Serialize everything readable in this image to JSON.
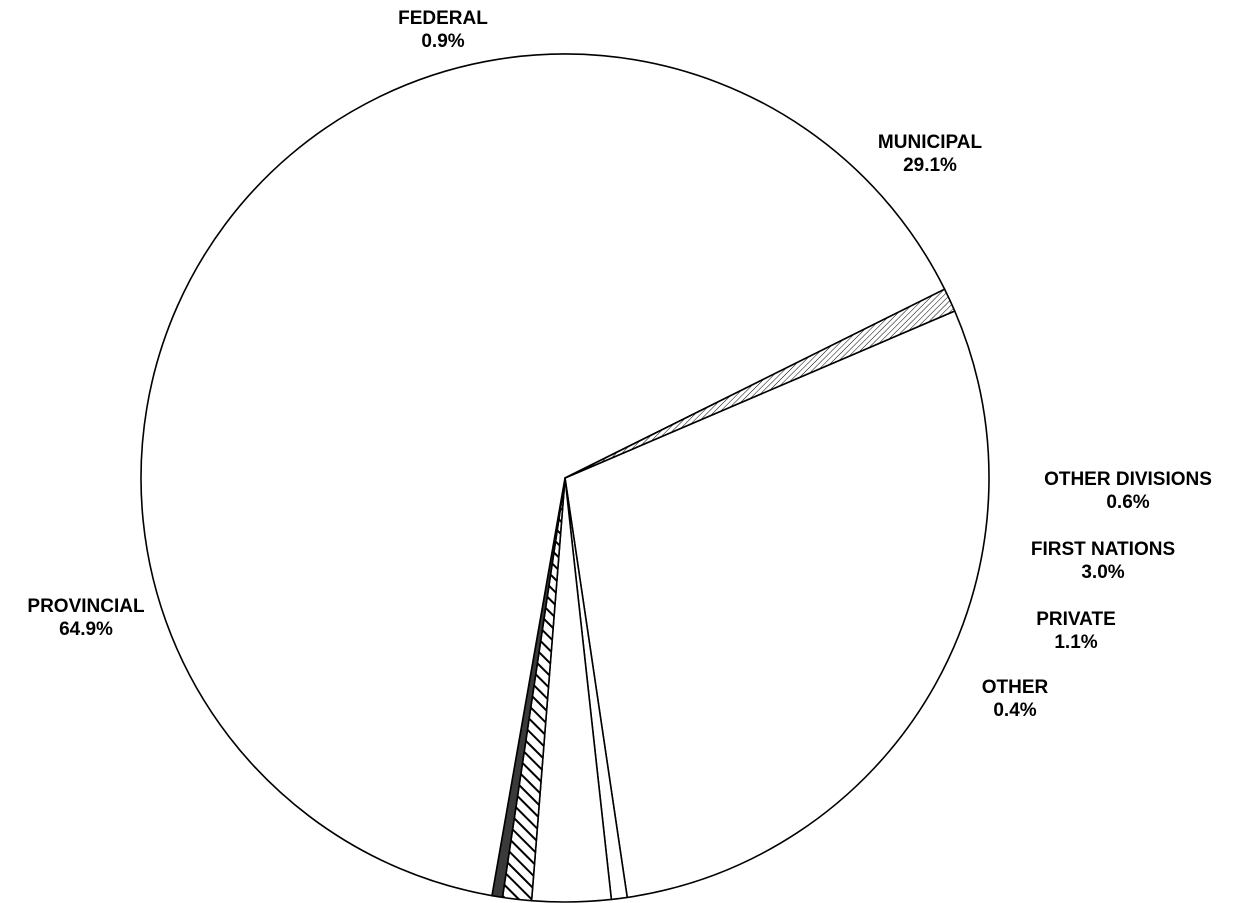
{
  "chart_data": {
    "type": "pie",
    "title": "",
    "slices": [
      {
        "name": "MUNICIPAL",
        "value": 29.1,
        "label": "29.1%",
        "pattern": "none"
      },
      {
        "name": "OTHER DIVISIONS",
        "value": 0.6,
        "label": "0.6%",
        "pattern": "none"
      },
      {
        "name": "FIRST NATIONS",
        "value": 3.0,
        "label": "3.0%",
        "pattern": "none"
      },
      {
        "name": "PRIVATE",
        "value": 1.1,
        "label": "1.1%",
        "pattern": "wide-diagonal-hatch"
      },
      {
        "name": "OTHER",
        "value": 0.4,
        "label": "0.4%",
        "pattern": "solid-dark"
      },
      {
        "name": "PROVINCIAL",
        "value": 64.9,
        "label": "64.9%",
        "pattern": "none"
      },
      {
        "name": "FEDERAL",
        "value": 0.9,
        "label": "0.9%",
        "pattern": "fine-diagonal-hatch"
      }
    ],
    "start_slice": "MUNICIPAL",
    "direction": "clockwise",
    "legend": "none",
    "colors": {
      "fill": "#ffffff",
      "stroke": "#000000",
      "dark": "#3a3a3a"
    }
  }
}
